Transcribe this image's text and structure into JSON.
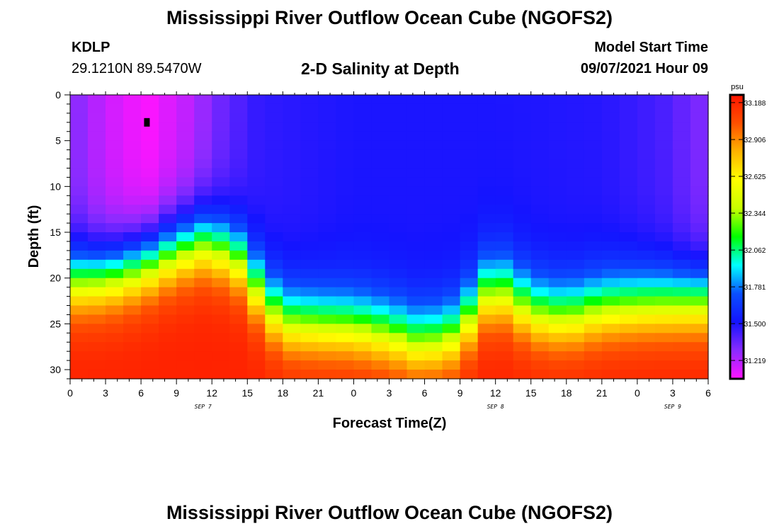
{
  "header": {
    "title": "Mississippi River Outflow Ocean Cube (NGOFS2)",
    "station_id": "KDLP",
    "station_coords": "29.1210N  89.5470W",
    "subtitle": "2-D Salinity at Depth",
    "model_start_label": "Model Start Time",
    "model_start_value": "09/07/2021 Hour 09"
  },
  "footer": {
    "title": "Mississippi River Outflow Ocean Cube (NGOFS2)"
  },
  "chart_data": {
    "type": "heatmap",
    "title": "2-D Salinity at Depth",
    "xlabel": "Forecast Time(Z)",
    "ylabel": "Depth (ft)",
    "xlim": [
      0,
      54
    ],
    "ylim": [
      0,
      31
    ],
    "y_inverted": true,
    "x_ticks": [
      {
        "value": 0,
        "label": "0"
      },
      {
        "value": 3,
        "label": "3"
      },
      {
        "value": 6,
        "label": "6"
      },
      {
        "value": 9,
        "label": "9"
      },
      {
        "value": 12,
        "label": "12"
      },
      {
        "value": 15,
        "label": "15"
      },
      {
        "value": 18,
        "label": "18"
      },
      {
        "value": 21,
        "label": "21"
      },
      {
        "value": 24,
        "label": "0"
      },
      {
        "value": 27,
        "label": "3"
      },
      {
        "value": 30,
        "label": "6"
      },
      {
        "value": 33,
        "label": "9"
      },
      {
        "value": 36,
        "label": "12"
      },
      {
        "value": 39,
        "label": "15"
      },
      {
        "value": 42,
        "label": "18"
      },
      {
        "value": 45,
        "label": "21"
      },
      {
        "value": 48,
        "label": "0"
      },
      {
        "value": 51,
        "label": "3"
      },
      {
        "value": 54,
        "label": "6"
      }
    ],
    "y_ticks": [
      0,
      5,
      10,
      15,
      20,
      25,
      30
    ],
    "date_labels": [
      {
        "value": 11.25,
        "label": "SEP 7"
      },
      {
        "value": 36,
        "label": "SEP 8"
      },
      {
        "value": 51,
        "label": "SEP 9"
      }
    ],
    "marker": {
      "x": 6.5,
      "y": 3
    },
    "colorbar": {
      "unit": "psu",
      "min": 31.079,
      "max": 33.247,
      "tick_values": [
        33.188,
        32.906,
        32.625,
        32.344,
        32.062,
        31.781,
        31.5,
        31.219
      ],
      "tick_labels": [
        "33.188",
        "32.906",
        "32.625",
        "32.344",
        "32.062",
        "31.781",
        "31.500",
        "31.219"
      ],
      "colors": [
        "#ff14ff",
        "#8a2bff",
        "#1414ff",
        "#0a50ff",
        "#00ffff",
        "#00ff00",
        "#c8ff00",
        "#ffff00",
        "#ffb400",
        "#ff5000",
        "#ff1400"
      ]
    },
    "halocline_depth_ft": [
      {
        "x": 0,
        "depth": 15.2
      },
      {
        "x": 3,
        "depth": 14.8
      },
      {
        "x": 6,
        "depth": 13.6
      },
      {
        "x": 9,
        "depth": 11.8
      },
      {
        "x": 11.5,
        "depth": 11.0
      },
      {
        "x": 14,
        "depth": 12.4
      },
      {
        "x": 16.5,
        "depth": 17.4
      },
      {
        "x": 18,
        "depth": 19.6
      },
      {
        "x": 21,
        "depth": 20.0
      },
      {
        "x": 24,
        "depth": 20.2
      },
      {
        "x": 27,
        "depth": 21.0
      },
      {
        "x": 29.5,
        "depth": 22.0
      },
      {
        "x": 32,
        "depth": 21.6
      },
      {
        "x": 34,
        "depth": 19.0
      },
      {
        "x": 35.5,
        "depth": 16.2
      },
      {
        "x": 37,
        "depth": 16.6
      },
      {
        "x": 39,
        "depth": 18.6
      },
      {
        "x": 42,
        "depth": 19.2
      },
      {
        "x": 45,
        "depth": 18.2
      },
      {
        "x": 48,
        "depth": 17.8
      },
      {
        "x": 51,
        "depth": 17.6
      },
      {
        "x": 54,
        "depth": 17.4
      }
    ],
    "surface_salinity_psu": [
      {
        "x": 0,
        "value": 31.32
      },
      {
        "x": 3,
        "value": 31.18
      },
      {
        "x": 6.5,
        "value": 31.08
      },
      {
        "x": 10,
        "value": 31.2
      },
      {
        "x": 13,
        "value": 31.36
      },
      {
        "x": 16,
        "value": 31.46
      },
      {
        "x": 24,
        "value": 31.5
      },
      {
        "x": 36,
        "value": 31.5
      },
      {
        "x": 45,
        "value": 31.48
      },
      {
        "x": 50,
        "value": 31.42
      },
      {
        "x": 54,
        "value": 31.3
      }
    ]
  }
}
